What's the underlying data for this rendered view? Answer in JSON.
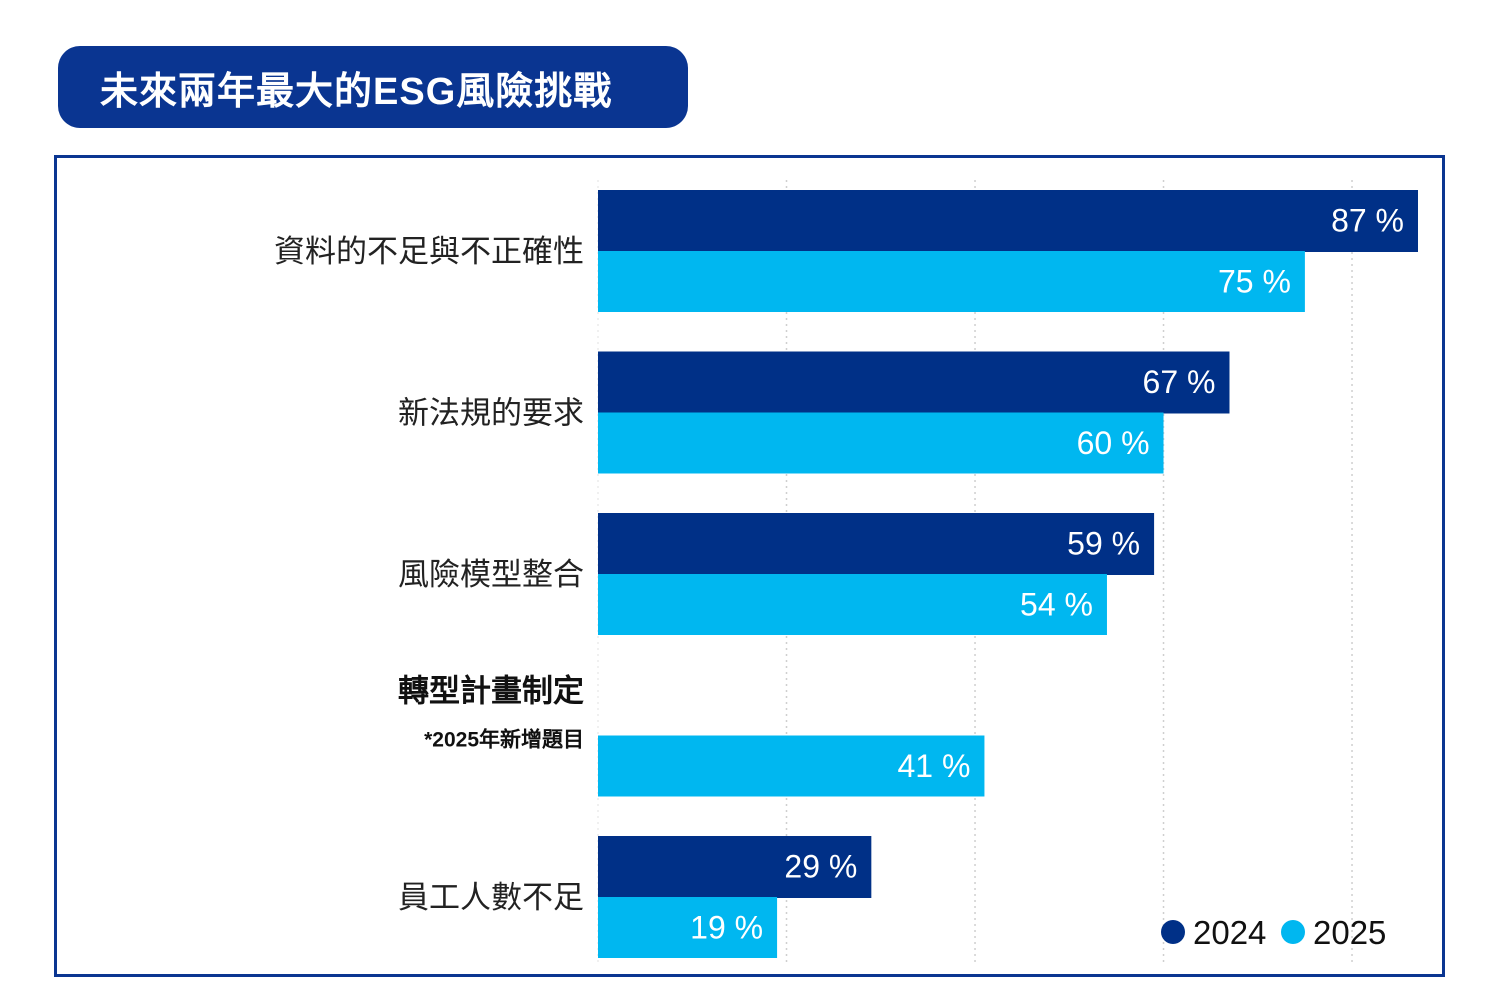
{
  "chart_data": {
    "type": "bar",
    "orientation": "horizontal",
    "title": "未來兩年最大的ESG風險挑戰",
    "categories": [
      "資料的不足與不正確性",
      "新法規的要求",
      "風險模型整合",
      "轉型計畫制定",
      "員工人數不足"
    ],
    "category_notes": [
      "",
      "",
      "",
      "*2025年新增題目",
      ""
    ],
    "series": [
      {
        "name": "2024",
        "color": "#003087",
        "values": [
          87,
          67,
          59,
          null,
          29
        ],
        "labels": [
          "87 %",
          "67 %",
          "59 %",
          "",
          "29 %"
        ]
      },
      {
        "name": "2025",
        "color": "#00b7f0",
        "values": [
          75,
          60,
          54,
          41,
          19
        ],
        "labels": [
          "75 %",
          "60 %",
          "54 %",
          "41 %",
          "19 %"
        ]
      }
    ],
    "xlim": [
      0,
      87
    ],
    "grid_step": 20,
    "grid": true,
    "legend_position": "bottom-right",
    "unit": "%"
  }
}
